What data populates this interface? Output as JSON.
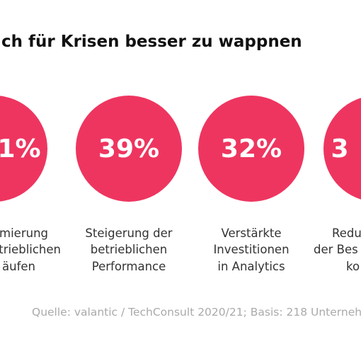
{
  "title": "ch für Krisen besser zu wappnen",
  "items": [
    {
      "value": "1%",
      "lines": [
        "mierung",
        "etrieblichen",
        "äufen"
      ]
    },
    {
      "value": "39%",
      "lines": [
        "Steigerung der",
        "betrieblichen",
        "Performance"
      ]
    },
    {
      "value": "32%",
      "lines": [
        "Verstärkte",
        "Investitionen",
        "in Analytics"
      ]
    },
    {
      "value": "3",
      "lines": [
        "Redu",
        "der Bes",
        "ko"
      ]
    }
  ],
  "source": "Quelle: valantic / TechConsult 2020/21; Basis: 218 Unternehm"
}
